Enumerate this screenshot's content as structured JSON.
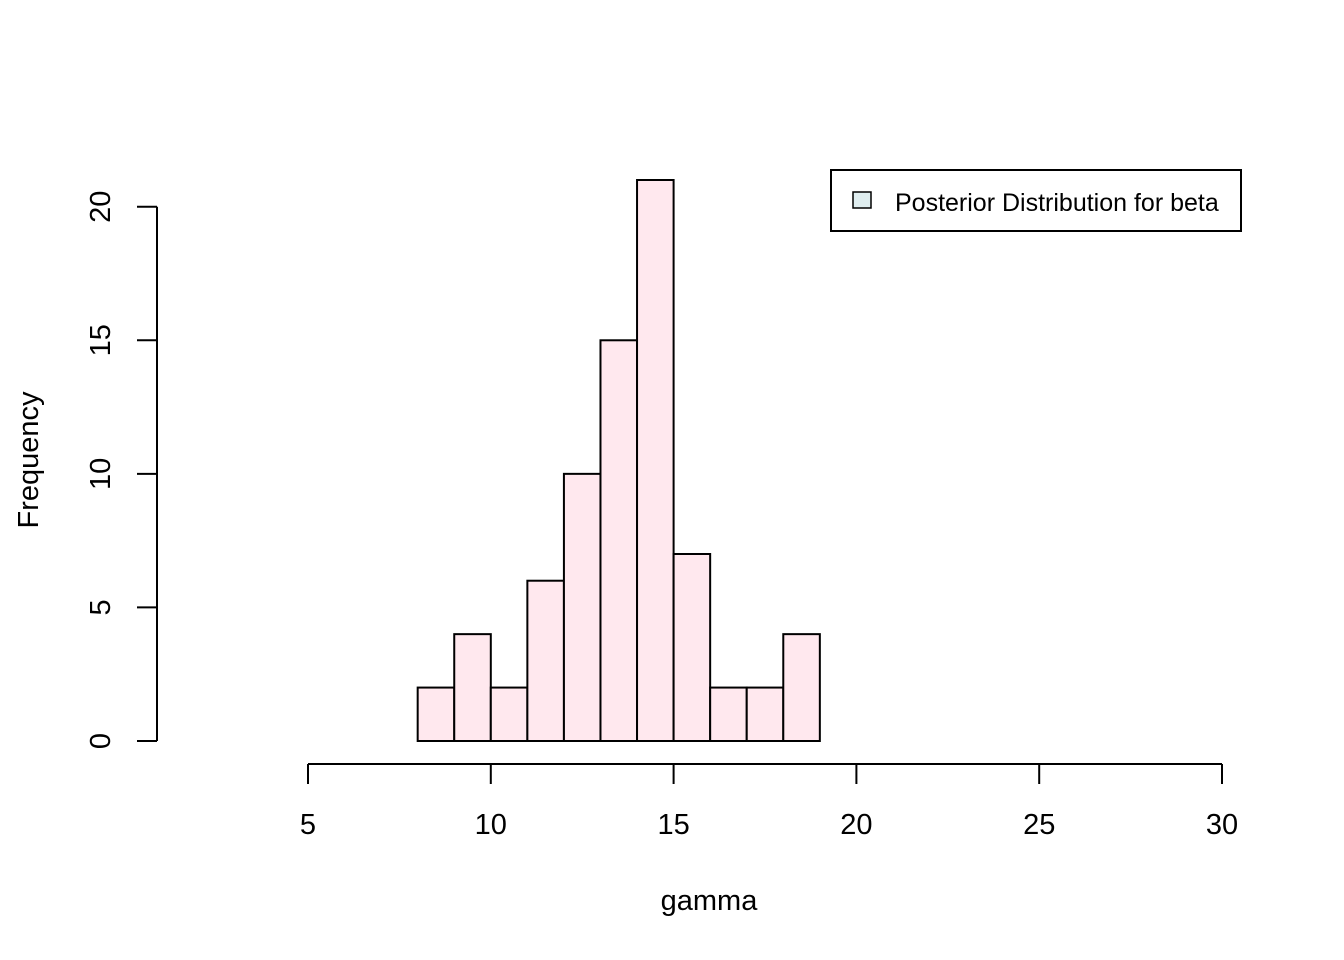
{
  "chart_data": {
    "type": "bar",
    "subtype": "histogram",
    "xlabel": "gamma",
    "ylabel": "Frequency",
    "bin_edges": [
      8,
      9,
      10,
      11,
      12,
      13,
      14,
      15,
      16,
      17,
      18,
      19
    ],
    "values": [
      2,
      4,
      2,
      6,
      10,
      15,
      21,
      7,
      2,
      2,
      4
    ],
    "xlim": [
      5,
      30
    ],
    "ylim": [
      0,
      21
    ],
    "x_ticks": [
      5,
      10,
      15,
      20,
      25,
      30
    ],
    "y_ticks": [
      0,
      5,
      10,
      15,
      20
    ],
    "grid": false,
    "legend": {
      "position": "top-right",
      "entries": [
        {
          "label": "Posterior Distribution for beta",
          "fill": "#E0EEF0"
        }
      ]
    },
    "colors": {
      "bar_fill": "#FFE8EE",
      "bar_stroke": "#000000"
    }
  }
}
